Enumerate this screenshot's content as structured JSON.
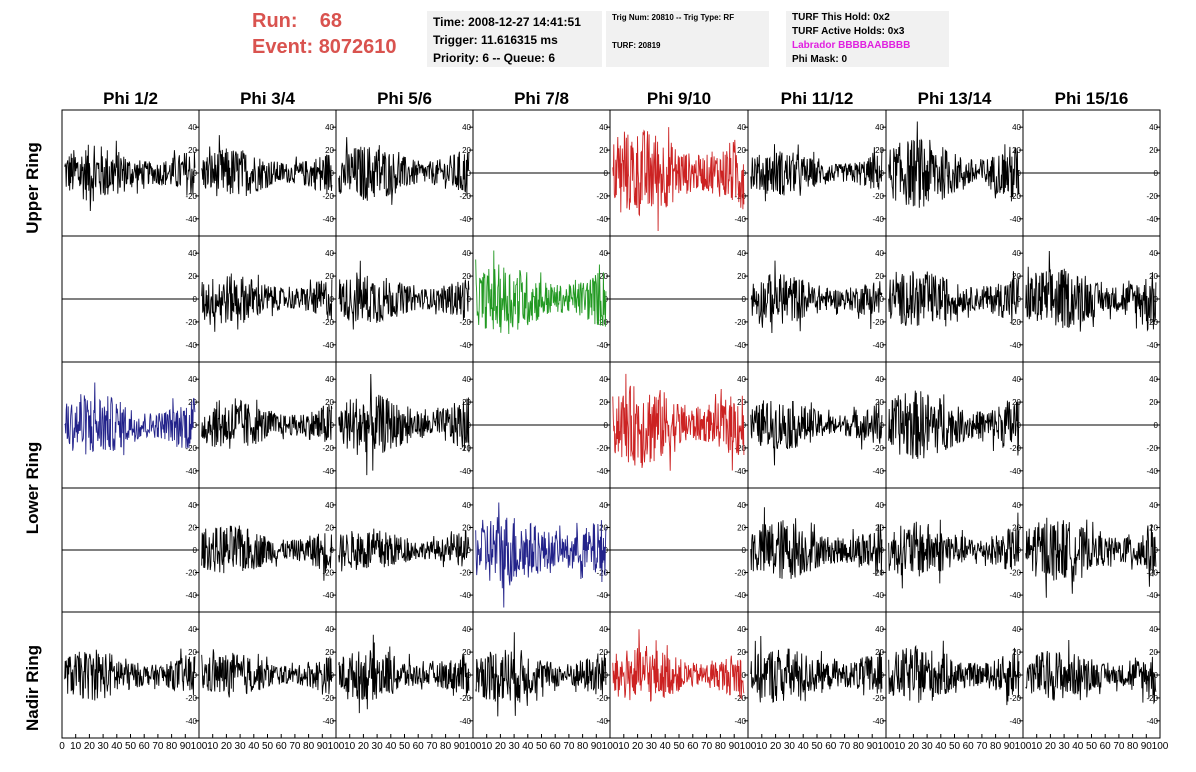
{
  "header": {
    "run_label": "Run:",
    "run_value": "68",
    "event_label": "Event:",
    "event_value": "8072610",
    "time": "Time: 2008-12-27 14:41:51",
    "trigger": "Trigger: 11.616315 ms",
    "priority": "Priority: 6 -- Queue: 6",
    "trig_line": "Trig Num: 20810 -- Trig Type: RF",
    "turf_line": "TURF: 20819",
    "turf_this_hold": "TURF This Hold: 0x2",
    "turf_active_holds": "TURF Active Holds: 0x3",
    "labrador": "Labrador BBBBAABBBB",
    "phi_mask": "Phi Mask: 0"
  },
  "colors": {
    "red": "#cc2222",
    "green": "#229922",
    "blue": "#22228a",
    "black": "#000000",
    "title_red": "#d9534f",
    "magenta": "#e020e0"
  },
  "chart_data": {
    "type": "line",
    "columns": [
      "Phi 1/2",
      "Phi 3/4",
      "Phi 5/6",
      "Phi 7/8",
      "Phi 9/10",
      "Phi 11/12",
      "Phi 13/14",
      "Phi 15/16"
    ],
    "rows": [
      "Upper Ring",
      "Lower Ring",
      "Nadir Ring"
    ],
    "yticks": [
      -40,
      -20,
      0,
      20,
      40
    ],
    "xticks": [
      0,
      10,
      20,
      30,
      40,
      50,
      60,
      70,
      80,
      90,
      100
    ],
    "xlim": [
      0,
      100
    ],
    "ylim": [
      -55,
      55
    ],
    "traces": [
      [
        "black",
        "black",
        "black",
        "flat",
        "red",
        "black",
        "black",
        "flat"
      ],
      [
        "flat",
        "black",
        "black",
        "green",
        "flat",
        "black",
        "black",
        "black"
      ],
      [
        "blue",
        "black",
        "black",
        "flat",
        "red",
        "black",
        "black",
        "flat"
      ],
      [
        "flat",
        "black",
        "black",
        "blue",
        "flat",
        "black",
        "black",
        "black"
      ],
      [
        "black",
        "black",
        "black",
        "black",
        "red",
        "black",
        "black",
        "black"
      ]
    ],
    "amplitudes": [
      [
        18,
        16,
        18,
        0,
        28,
        14,
        22,
        0
      ],
      [
        0,
        16,
        16,
        22,
        0,
        16,
        18,
        20
      ],
      [
        20,
        16,
        20,
        0,
        26,
        16,
        22,
        0
      ],
      [
        0,
        16,
        14,
        24,
        0,
        20,
        18,
        20
      ],
      [
        16,
        14,
        16,
        18,
        18,
        18,
        18,
        16
      ]
    ]
  }
}
